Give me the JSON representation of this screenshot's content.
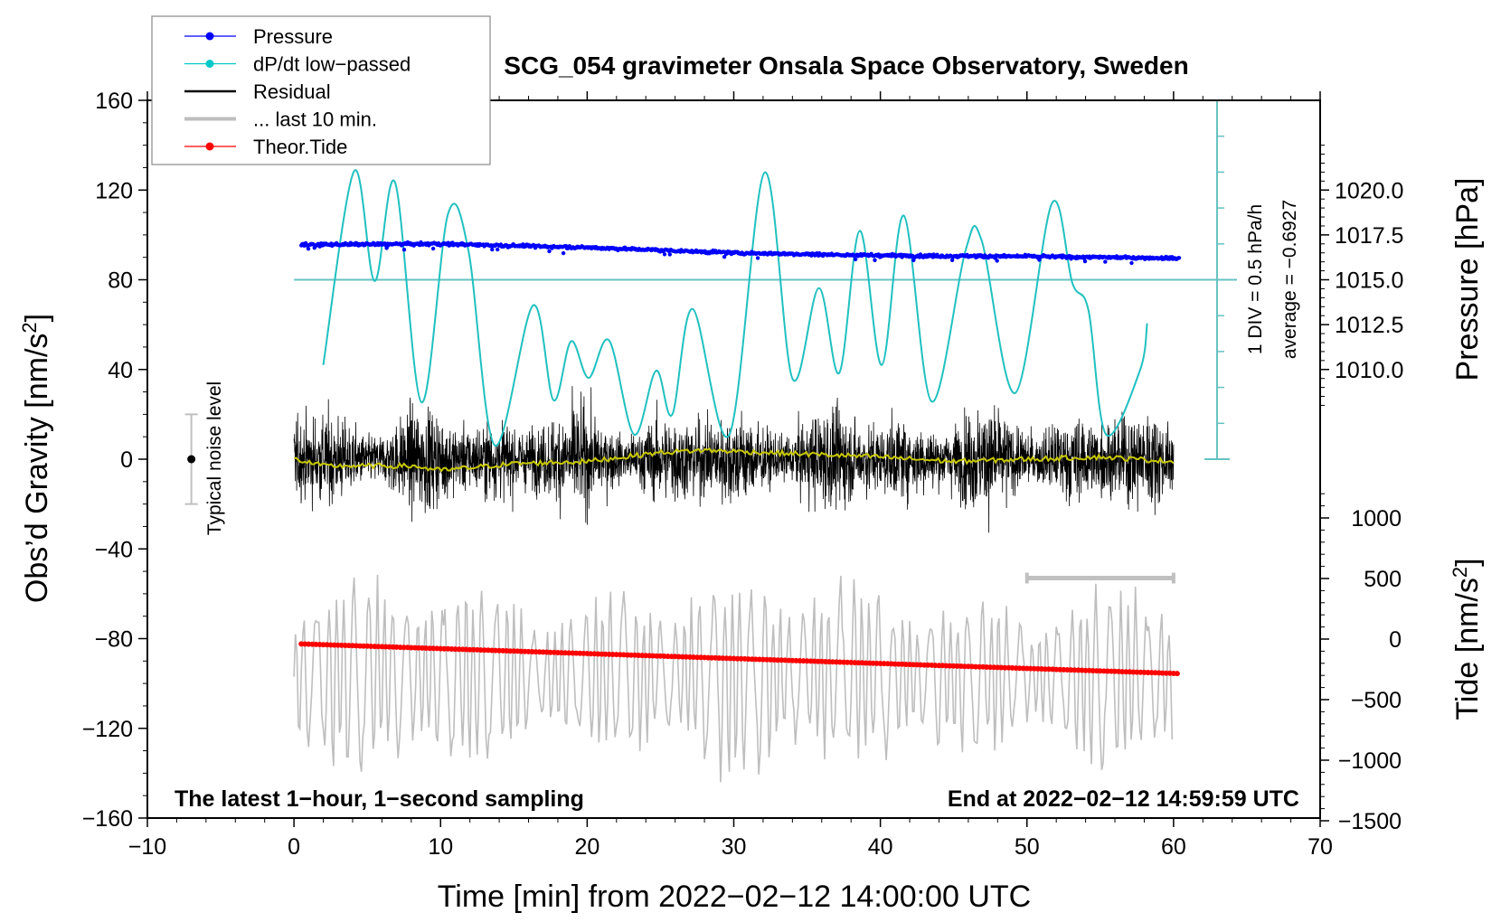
{
  "chart_data": {
    "type": "line",
    "title": "SCG_054 gravimeter Onsala Space Observatory, Sweden",
    "xlabel": "Time [min] from 2022−02−12 14:00:00 UTC",
    "ylabel_left": "Obs’d Gravity [nm/s²]",
    "ylabel_right_top": "Pressure [hPa]",
    "ylabel_right_bottom": "Tide [nm/s²]",
    "xlim": [
      -10,
      70
    ],
    "ylim_left": [
      -160,
      160
    ],
    "x_ticks": [
      -10,
      0,
      10,
      20,
      30,
      40,
      50,
      60,
      70
    ],
    "x_tick_labels": [
      "−10",
      "0",
      "10",
      "20",
      "30",
      "40",
      "50",
      "60",
      "70"
    ],
    "y_left_ticks": [
      160,
      120,
      80,
      40,
      0,
      -40,
      -80,
      -120,
      -160
    ],
    "y_left_tick_labels": [
      "160",
      "120",
      "80",
      "40",
      "0",
      "−40",
      "−80",
      "−120",
      "−160"
    ],
    "pressure_axis": {
      "ticks": [
        1020.0,
        1017.5,
        1015.0,
        1012.5,
        1010.0
      ],
      "tick_labels": [
        "1020.0",
        "1017.5",
        "1015.0",
        "1012.5",
        "1010.0"
      ],
      "left_value_at_80": 1015.0,
      "hpa_per_40_left_units": 5.0
    },
    "tide_axis": {
      "ticks": [
        1000,
        500,
        0,
        -500,
        -1000,
        -1500
      ],
      "tick_labels": [
        "1000",
        "500",
        "0",
        "−500",
        "−1000",
        "−1500"
      ],
      "range": [
        -1500,
        1200
      ]
    },
    "dpdt_scale": {
      "label_div": "1 DIV = 0.5 hPa/h",
      "label_avg": "average = −0.6927",
      "average": -0.6927,
      "div": 0.5,
      "divisions_above": 5,
      "divisions_below": 5
    },
    "legend": [
      {
        "label": "Pressure",
        "color": "#0000ff",
        "marker": true
      },
      {
        "label": "dP/dt low−passed",
        "color": "#00c8c8",
        "marker": true
      },
      {
        "label": "Residual",
        "color": "#000000",
        "marker": false
      },
      {
        "label": "... last 10 min.",
        "color": "#bebebe",
        "marker": false
      },
      {
        "label": "Theor.Tide",
        "color": "#ff0000",
        "marker": true
      }
    ],
    "legend_position": "top-left",
    "series": [
      {
        "name": "Pressure",
        "unit": "hPa",
        "color": "#0000ff",
        "x": [
          0.5,
          10,
          20,
          30,
          40,
          50,
          60.4
        ],
        "values": [
          1016.95,
          1017.0,
          1016.8,
          1016.5,
          1016.35,
          1016.3,
          1016.2
        ],
        "scatter_noise_hpa": 0.12
      },
      {
        "name": "dP/dt low-passed",
        "unit": "hPa/h",
        "color": "#20c0c0",
        "x": [
          2.0,
          4.1,
          5.5,
          6.9,
          8.7,
          10.5,
          11.9,
          13.7,
          16.3,
          17.7,
          18.9,
          20.1,
          21.5,
          23.2,
          24.7,
          25.8,
          27.2,
          29.7,
          32.1,
          34.0,
          35.8,
          37.2,
          38.6,
          40.1,
          41.6,
          43.5,
          45.8,
          46.9,
          49.2,
          51.7,
          53.1,
          54.2,
          55.4,
          57.7,
          58.2
        ],
        "values": [
          -1.88,
          0.82,
          -0.71,
          0.66,
          -2.4,
          0.22,
          -0.29,
          -3.0,
          -1.05,
          -2.37,
          -1.55,
          -2.06,
          -1.54,
          -2.85,
          -1.96,
          -2.57,
          -1.1,
          -2.85,
          0.8,
          -2.07,
          -0.81,
          -1.99,
          -0.01,
          -1.88,
          0.2,
          -2.39,
          -0.29,
          -0.14,
          -2.27,
          0.37,
          -0.74,
          -1.12,
          -2.85,
          -1.96,
          -1.3
        ]
      },
      {
        "name": "Residual",
        "unit": "nm/s²",
        "color": "#000000",
        "x_range": [
          0,
          60
        ],
        "typical_amplitude": 30,
        "peak_range": [
          -60,
          60
        ]
      },
      {
        "name": "Residual smoothed",
        "unit": "nm/s²",
        "color": "#c8c800",
        "x": [
          0,
          2,
          5,
          8,
          10,
          15,
          20,
          25,
          28,
          32,
          36,
          40,
          45,
          50,
          55,
          60
        ],
        "values": [
          0,
          -3,
          -3,
          -3,
          -5,
          -2,
          -1,
          3,
          4,
          3,
          2,
          1,
          -1,
          0,
          1,
          -1
        ]
      },
      {
        "name": "... last 10 min.",
        "unit": "nm/s²",
        "color": "#bebebe",
        "x_range": [
          0,
          60
        ],
        "offset_left_units": -97,
        "amplitude_left_units": 30,
        "peak_range": [
          -150,
          -38
        ]
      },
      {
        "name": "Theor.Tide",
        "unit": "nm/s²",
        "color": "#ff0000",
        "x": [
          0.5,
          60.4
        ],
        "values": [
          -40,
          -285
        ]
      }
    ],
    "noise_bar": {
      "label": "Typical noise level",
      "x": -7,
      "center": 0,
      "half_range": 20
    },
    "last_10_min_bar": {
      "x_start": 50,
      "x_end": 60,
      "y_left": -53
    },
    "annotations": {
      "bottom_left": "The latest 1−hour, 1−second sampling",
      "bottom_right": "End at 2022−02−12 14:59:59 UTC"
    }
  }
}
